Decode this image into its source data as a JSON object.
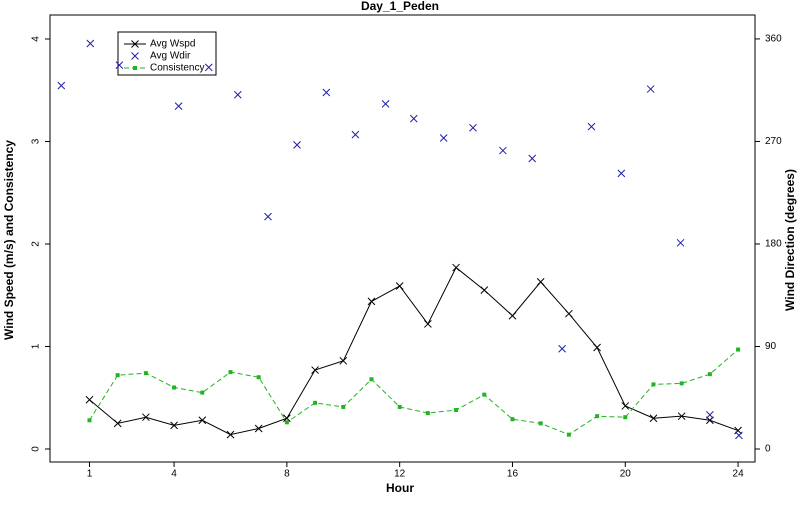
{
  "chart_data": {
    "type": "line",
    "title": "Day_1_Peden",
    "x_label": "Hour",
    "y_label": "Wind Speed (m/s) and Consistency",
    "y2_label": "Wind Direction (degrees)",
    "xlim": [
      -0.4,
      24.6
    ],
    "xticks": [
      1,
      4,
      8,
      12,
      16,
      20,
      24
    ],
    "ylim": [
      -0.127,
      4.234
    ],
    "yticks": [
      0,
      1,
      2,
      3,
      4
    ],
    "y2lim": [
      -11.4,
      381
    ],
    "y2ticks": [
      0,
      90,
      180,
      270,
      360
    ],
    "legend": "upper left",
    "series": [
      {
        "name": "Avg Wspd",
        "color": "#000000",
        "marker": "x",
        "line": "solid",
        "x": [
          1,
          2,
          3,
          4,
          5,
          6,
          7,
          8,
          9,
          10,
          11,
          12,
          13,
          14,
          15,
          16,
          17,
          18,
          19,
          20,
          21,
          22,
          23,
          24
        ],
        "values": [
          0.48,
          0.25,
          0.31,
          0.23,
          0.28,
          0.14,
          0.2,
          0.3,
          0.77,
          0.86,
          1.44,
          1.59,
          1.22,
          1.77,
          1.55,
          1.3,
          1.63,
          1.32,
          0.99,
          0.42,
          0.3,
          0.32,
          0.28,
          0.18
        ]
      },
      {
        "name": "Avg Wdir",
        "color": "#1f1fa8",
        "marker": "x",
        "line": "none",
        "axis": "y2",
        "x": [
          0,
          1.03,
          2.06,
          4.16,
          5.23,
          6.26,
          7.33,
          8.36,
          9.4,
          10.43,
          11.5,
          12.5,
          13.56,
          14.6,
          15.66,
          16.7,
          17.76,
          18.8,
          19.86,
          20.9,
          21.96,
          23,
          24.03
        ],
        "values": [
          319,
          356,
          337,
          301,
          335,
          311,
          204,
          267,
          313,
          276,
          303,
          290,
          273,
          282,
          262,
          255,
          88,
          283,
          242,
          316,
          181,
          30,
          12
        ]
      },
      {
        "name": "Consistency",
        "color": "#22b322",
        "marker": "square",
        "line": "dashed",
        "x": [
          1,
          2,
          3,
          4,
          5,
          6,
          7,
          8,
          9,
          10,
          11,
          12,
          13,
          14,
          15,
          16,
          17,
          18,
          19,
          20,
          21,
          22,
          23,
          24
        ],
        "values": [
          0.28,
          0.72,
          0.74,
          0.6,
          0.55,
          0.75,
          0.7,
          0.26,
          0.45,
          0.41,
          0.68,
          0.41,
          0.35,
          0.38,
          0.53,
          0.29,
          0.25,
          0.14,
          0.32,
          0.31,
          0.63,
          0.64,
          0.73,
          0.97
        ]
      }
    ]
  }
}
